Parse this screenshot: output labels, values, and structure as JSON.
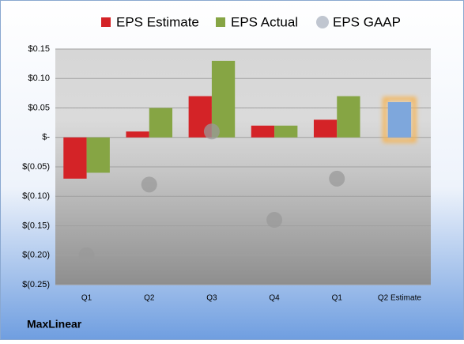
{
  "chart_data": {
    "type": "bar",
    "categories": [
      "Q1",
      "Q2",
      "Q3",
      "Q4",
      "Q1",
      "Q2 Estimate"
    ],
    "series": [
      {
        "name": "EPS Estimate",
        "color": "#d42327",
        "values": [
          -0.07,
          0.01,
          0.07,
          0.02,
          0.03,
          0.06
        ],
        "highlight": {
          "index": 5,
          "color": "#7ea7dc",
          "glow": "#f6b452"
        }
      },
      {
        "name": "EPS Actual",
        "color": "#86a544",
        "values": [
          -0.06,
          0.05,
          0.13,
          0.02,
          0.07,
          null
        ]
      },
      {
        "name": "EPS GAAP",
        "color": "#9a9a9a",
        "marker": "circle",
        "values": [
          -0.2,
          -0.08,
          0.01,
          -0.14,
          -0.07,
          null
        ]
      }
    ],
    "ylim": [
      -0.25,
      0.15
    ],
    "yticks": [
      {
        "value": 0.15,
        "label": "$0.15"
      },
      {
        "value": 0.1,
        "label": "$0.10"
      },
      {
        "value": 0.05,
        "label": "$0.05"
      },
      {
        "value": 0,
        "label": "$-"
      },
      {
        "value": -0.05,
        "label": "$(0.05)"
      },
      {
        "value": -0.1,
        "label": "$(0.10)"
      },
      {
        "value": -0.15,
        "label": "$(0.15)"
      },
      {
        "value": -0.2,
        "label": "$(0.20)"
      },
      {
        "value": -0.25,
        "label": "$(0.25)"
      }
    ],
    "grid": true,
    "footer": "MaxLinear"
  }
}
